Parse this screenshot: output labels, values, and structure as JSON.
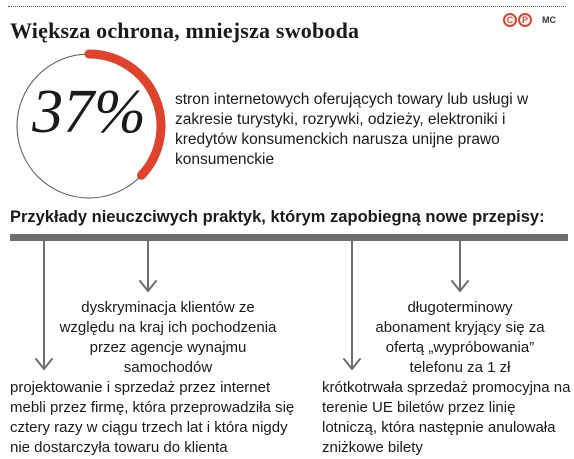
{
  "header": {
    "title": "Większa ochrona, mniejsza swoboda",
    "logo_left": "C",
    "logo_right": "P",
    "credit": "MC"
  },
  "stat": {
    "value": "37%",
    "fraction": 0.37,
    "description": "stron internetowych oferujących towary lub usługi w zakresie turystyki, rozrywki, odzieży, elektroniki i kredytów konsumenckich narusza unijne prawo konsumenckie",
    "accent_color": "#e0432d",
    "track_color": "#555555"
  },
  "section": {
    "heading": "Przykłady nieuczciwych praktyk, którym zapobiegną nowe przepisy:"
  },
  "practices": [
    {
      "text": "projektowanie i sprzedaż przez internet mebli przez firmę, która przeprowadziła się cztery razy w ciągu trzech lat i która nigdy nie dostarczyła towaru do klienta"
    },
    {
      "text": "dyskryminacja klientów ze względu na kraj ich pochodzenia przez agencje wynajmu samochodów"
    },
    {
      "text": "krótkotrwała sprzedaż promocyjna na terenie UE biletów przez linię lotniczą, która następnie anulowała zniżkowe bilety"
    },
    {
      "text": "długoterminowy abonament kryjący się za ofertą „wypróbowania” telefonu za 1 zł"
    }
  ]
}
